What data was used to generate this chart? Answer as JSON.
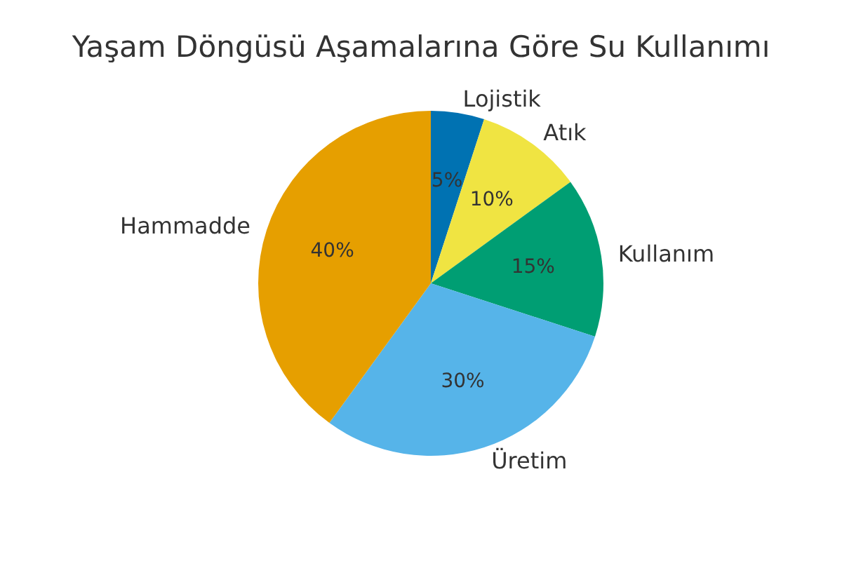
{
  "chart_data": {
    "type": "pie",
    "title": "Yaşam Döngüsü Aşamalarına Göre Su Kullanımı",
    "categories": [
      "Lojistik",
      "Atık",
      "Kullanım",
      "Üretim",
      "Hammadde"
    ],
    "values": [
      5,
      10,
      15,
      30,
      40
    ],
    "colors": [
      "#0072b2",
      "#f0e442",
      "#009e73",
      "#56b4e9",
      "#e69f00"
    ],
    "value_labels": [
      "5%",
      "10%",
      "15%",
      "30%",
      "40%"
    ],
    "legend": false
  }
}
